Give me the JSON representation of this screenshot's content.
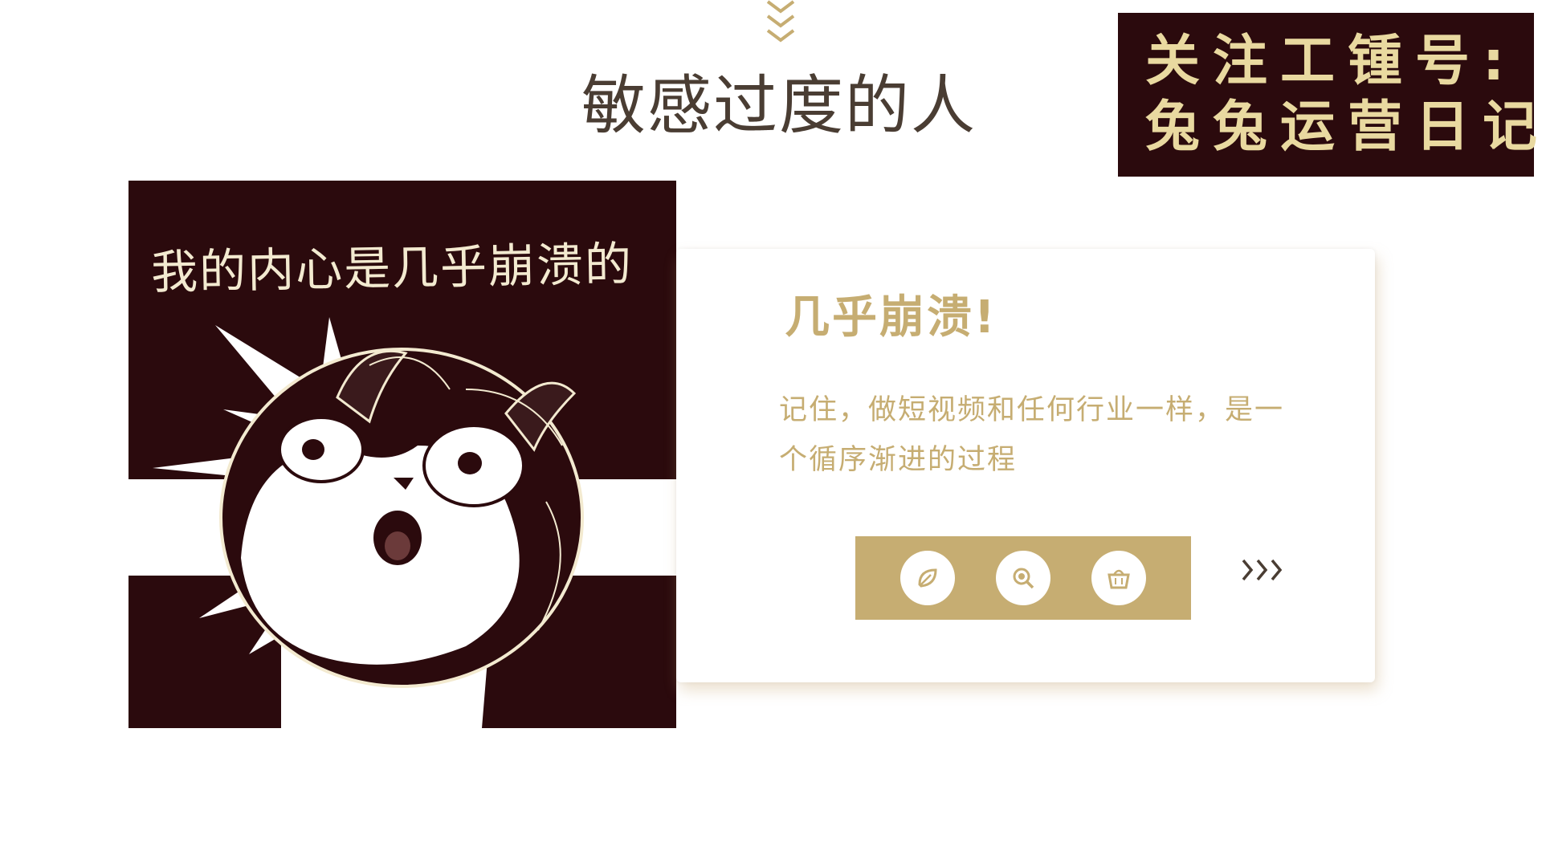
{
  "header": {
    "title": "敏感过度的人"
  },
  "follow_badge": {
    "line1": "关注工锺号:",
    "line2": "兔兔运营日记"
  },
  "meme": {
    "caption": "我的内心是几乎崩溃的"
  },
  "card": {
    "title": "几乎崩溃!",
    "body": "记住，做短视频和任何行业一样，是一个循序渐进的过程"
  },
  "actions": {
    "icons": [
      "leaf-icon",
      "magnifier-icon",
      "basket-icon"
    ]
  },
  "colors": {
    "accent_gold": "#c6ad72",
    "dark_maroon": "#2b0a0d",
    "title_text": "#4a3d33",
    "badge_text": "#e9d9a0"
  }
}
